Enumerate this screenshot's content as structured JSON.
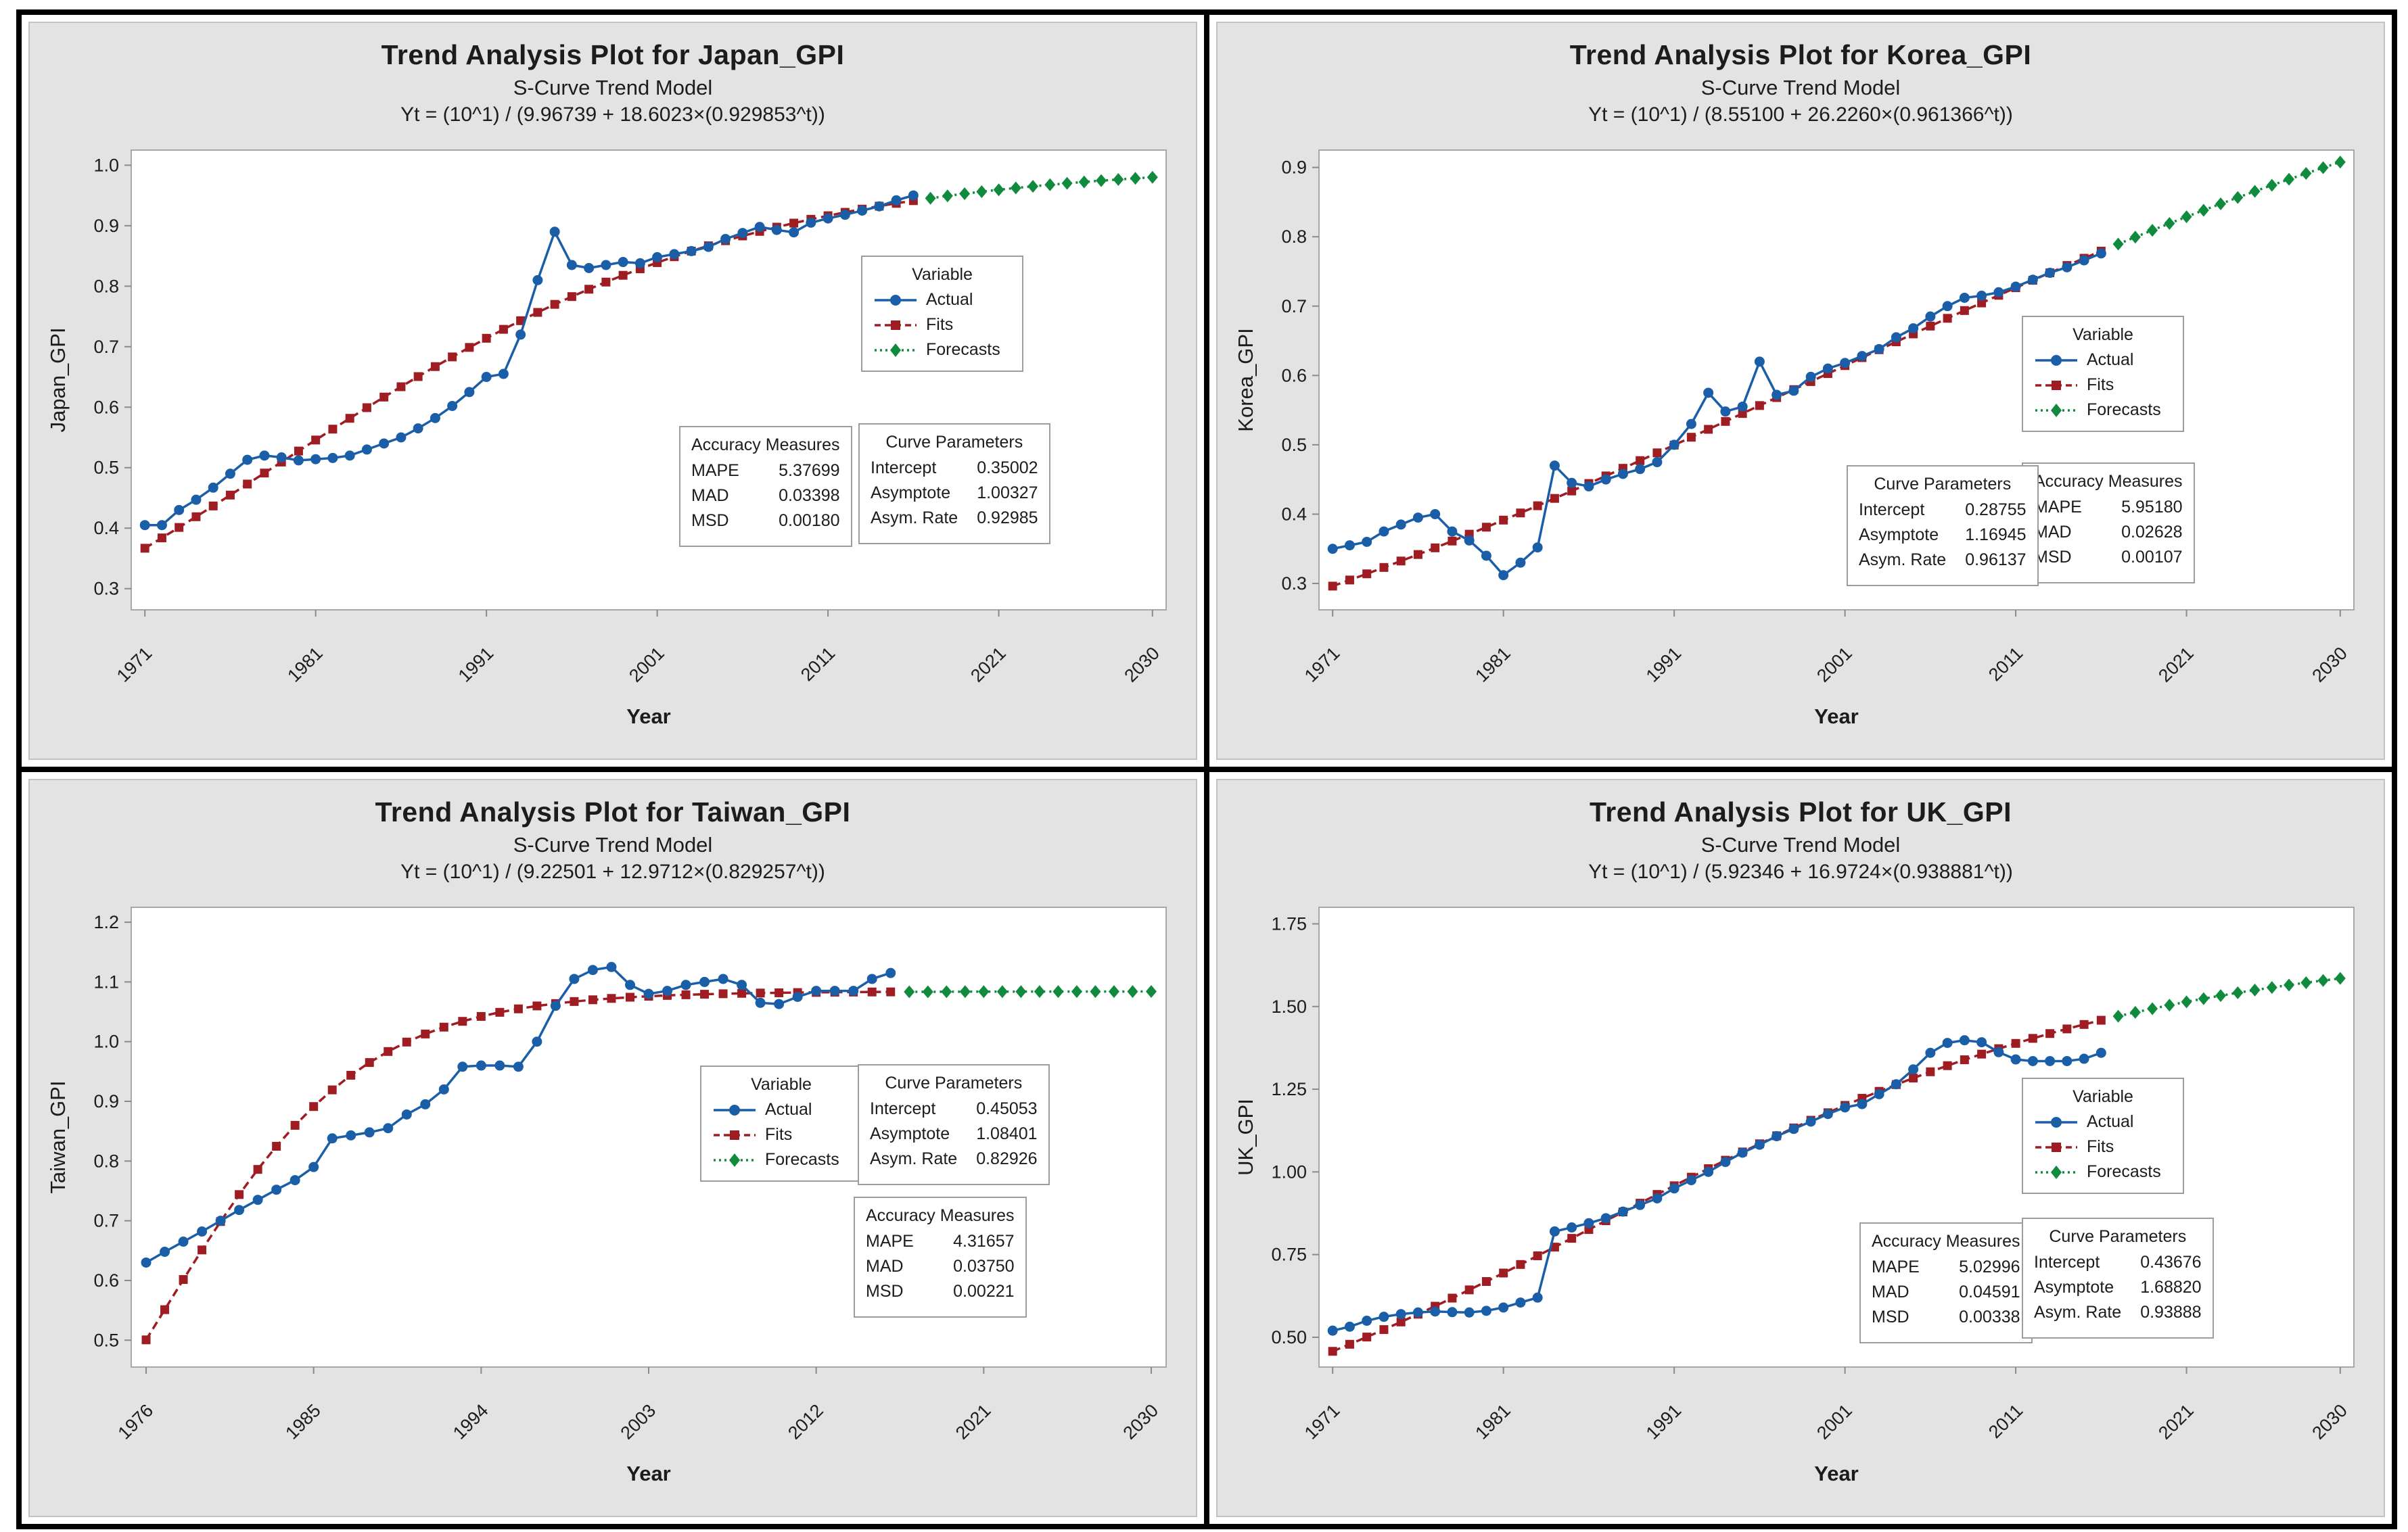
{
  "page": {
    "background": "#ffffff",
    "frame_color": "#000000",
    "panel_background": "#e3e3e3",
    "plot_background": "#ffffff",
    "axis_color": "#a8a8a8",
    "tick_color": "#8a8a8a",
    "text_color": "#1c1c1c",
    "series_colors": {
      "actual": "#1A5EA8",
      "fits": "#9F1D22",
      "forecasts": "#108A3C"
    }
  },
  "chart_data": [
    {
      "type": "line",
      "title": "Trend Analysis Plot for Japan_GPI",
      "subtitle": "S-Curve Trend Model",
      "equation": "Yt = (10^1) / (9.96739 + 18.6023×(0.929853^t))",
      "ylabel": "Japan_GPI",
      "xlabel": "Year",
      "start_year": 1971,
      "forecast_start_year": 2017,
      "ylim": [
        0.265,
        1.025
      ],
      "xlim": [
        1970.2,
        2030.8
      ],
      "ytick_values": [
        0.3,
        0.4,
        0.5,
        0.6,
        0.7,
        0.8,
        0.9,
        1.0
      ],
      "ytick_labels": [
        "0.3",
        "0.4",
        "0.5",
        "0.6",
        "0.7",
        "0.8",
        "0.9",
        "1.0"
      ],
      "xtick_values": [
        1971,
        1981,
        1991,
        2001,
        2011,
        2021,
        2030
      ],
      "xtick_labels": [
        "1971",
        "1981",
        "1991",
        "2001",
        "2011",
        "2021",
        "2030"
      ],
      "series": [
        {
          "name": "Actual",
          "key": "actual",
          "values": [
            0.405,
            0.405,
            0.43,
            0.447,
            0.467,
            0.49,
            0.513,
            0.52,
            0.517,
            0.512,
            0.514,
            0.516,
            0.52,
            0.53,
            0.54,
            0.55,
            0.565,
            0.582,
            0.602,
            0.625,
            0.65,
            0.655,
            0.72,
            0.81,
            0.89,
            0.835,
            0.83,
            0.835,
            0.84,
            0.838,
            0.848,
            0.853,
            0.858,
            0.865,
            0.878,
            0.888,
            0.898,
            0.893,
            0.889,
            0.905,
            0.912,
            0.918,
            0.925,
            0.932,
            0.942,
            0.95
          ]
        },
        {
          "name": "Fits",
          "key": "fits",
          "values": [
            0.3668,
            0.3839,
            0.4012,
            0.4189,
            0.4367,
            0.4547,
            0.4729,
            0.4911,
            0.5093,
            0.5275,
            0.5457,
            0.5637,
            0.5816,
            0.5992,
            0.6167,
            0.6338,
            0.6506,
            0.6671,
            0.6831,
            0.6988,
            0.7139,
            0.7287,
            0.743,
            0.7567,
            0.77,
            0.7828,
            0.795,
            0.8068,
            0.818,
            0.8287,
            0.839,
            0.8487,
            0.858,
            0.8668,
            0.8752,
            0.8831,
            0.8906,
            0.8976,
            0.9043,
            0.9106,
            0.9165,
            0.9221,
            0.9274,
            0.9323,
            0.937,
            0.9414
          ]
        },
        {
          "name": "Forecasts",
          "key": "forecasts",
          "values": [
            0.9454,
            0.9493,
            0.9529,
            0.9563,
            0.9594,
            0.9624,
            0.9651,
            0.9677,
            0.9701,
            0.9724,
            0.9745,
            0.9764,
            0.9783,
            0.98
          ]
        }
      ],
      "legend": {
        "title": "Variable",
        "items": [
          "Actual",
          "Fits",
          "Forecasts"
        ]
      },
      "accuracy": {
        "title": "Accuracy Measures",
        "rows": [
          [
            "MAPE",
            "5.37699"
          ],
          [
            "MAD",
            "0.03398"
          ],
          [
            "MSD",
            "0.00180"
          ]
        ]
      },
      "curve": {
        "title": "Curve Parameters",
        "rows": [
          [
            "Intercept",
            "0.35002"
          ],
          [
            "Asymptote",
            "1.00327"
          ],
          [
            "Asym. Rate",
            "0.92985"
          ]
        ]
      }
    },
    {
      "type": "line",
      "title": "Trend Analysis Plot for Korea_GPI",
      "subtitle": "S-Curve Trend Model",
      "equation": "Yt = (10^1) / (8.55100 + 26.2260×(0.961366^t))",
      "ylabel": "Korea_GPI",
      "xlabel": "Year",
      "start_year": 1971,
      "forecast_start_year": 2017,
      "ylim": [
        0.262,
        0.925
      ],
      "xlim": [
        1970.2,
        2030.8
      ],
      "ytick_values": [
        0.3,
        0.4,
        0.5,
        0.6,
        0.7,
        0.8,
        0.9
      ],
      "ytick_labels": [
        "0.3",
        "0.4",
        "0.5",
        "0.6",
        "0.7",
        "0.8",
        "0.9"
      ],
      "xtick_values": [
        1971,
        1981,
        1991,
        2001,
        2011,
        2021,
        2030
      ],
      "xtick_labels": [
        "1971",
        "1981",
        "1991",
        "2001",
        "2011",
        "2021",
        "2030"
      ],
      "series": [
        {
          "name": "Actual",
          "key": "actual",
          "values": [
            0.35,
            0.355,
            0.36,
            0.375,
            0.385,
            0.395,
            0.4,
            0.375,
            0.362,
            0.34,
            0.312,
            0.33,
            0.352,
            0.47,
            0.445,
            0.44,
            0.45,
            0.458,
            0.465,
            0.475,
            0.5,
            0.53,
            0.575,
            0.548,
            0.555,
            0.62,
            0.572,
            0.578,
            0.598,
            0.61,
            0.618,
            0.628,
            0.638,
            0.655,
            0.668,
            0.685,
            0.7,
            0.712,
            0.715,
            0.72,
            0.728,
            0.738,
            0.748,
            0.756,
            0.766,
            0.776
          ]
        },
        {
          "name": "Fits",
          "key": "fits",
          "values": [
            0.2962,
            0.305,
            0.3139,
            0.3231,
            0.3324,
            0.3418,
            0.3514,
            0.3612,
            0.3711,
            0.3812,
            0.3914,
            0.4017,
            0.4121,
            0.4227,
            0.4334,
            0.4442,
            0.4551,
            0.4661,
            0.4772,
            0.4884,
            0.4996,
            0.5109,
            0.5223,
            0.5337,
            0.5451,
            0.5566,
            0.5681,
            0.5796,
            0.5912,
            0.6027,
            0.6142,
            0.6257,
            0.6371,
            0.6485,
            0.6599,
            0.6712,
            0.6824,
            0.6936,
            0.7046,
            0.7156,
            0.7265,
            0.7373,
            0.748,
            0.7586,
            0.769,
            0.7793
          ]
        },
        {
          "name": "Forecasts",
          "key": "forecasts",
          "values": [
            0.7895,
            0.7995,
            0.8094,
            0.8192,
            0.8288,
            0.8382,
            0.8475,
            0.8566,
            0.8655,
            0.8743,
            0.8829,
            0.8914,
            0.8996,
            0.9077
          ]
        }
      ],
      "legend": {
        "title": "Variable",
        "items": [
          "Actual",
          "Fits",
          "Forecasts"
        ]
      },
      "accuracy": {
        "title": "Accuracy Measures",
        "rows": [
          [
            "MAPE",
            "5.95180"
          ],
          [
            "MAD",
            "0.02628"
          ],
          [
            "MSD",
            "0.00107"
          ]
        ]
      },
      "curve": {
        "title": "Curve Parameters",
        "rows": [
          [
            "Intercept",
            "0.28755"
          ],
          [
            "Asymptote",
            "1.16945"
          ],
          [
            "Asym. Rate",
            "0.96137"
          ]
        ]
      }
    },
    {
      "type": "line",
      "title": "Trend Analysis Plot for Taiwan_GPI",
      "subtitle": "S-Curve Trend Model",
      "equation": "Yt = (10^1) / (9.22501 + 12.9712×(0.829257^t))",
      "ylabel": "Taiwan_GPI",
      "xlabel": "Year",
      "start_year": 1976,
      "forecast_start_year": 2017,
      "ylim": [
        0.455,
        1.225
      ],
      "xlim": [
        1975.2,
        2030.8
      ],
      "ytick_values": [
        0.5,
        0.6,
        0.7,
        0.8,
        0.9,
        1.0,
        1.1,
        1.2
      ],
      "ytick_labels": [
        "0.5",
        "0.6",
        "0.7",
        "0.8",
        "0.9",
        "1.0",
        "1.1",
        "1.2"
      ],
      "xtick_values": [
        1976,
        1985,
        1994,
        2003,
        2012,
        2021,
        2030
      ],
      "xtick_labels": [
        "1976",
        "1985",
        "1994",
        "2003",
        "2012",
        "2021",
        "2030"
      ],
      "series": [
        {
          "name": "Actual",
          "key": "actual",
          "values": [
            0.63,
            0.648,
            0.665,
            0.682,
            0.7,
            0.718,
            0.735,
            0.752,
            0.768,
            0.79,
            0.838,
            0.843,
            0.848,
            0.855,
            0.878,
            0.895,
            0.92,
            0.958,
            0.96,
            0.96,
            0.958,
            1.0,
            1.06,
            1.105,
            1.12,
            1.125,
            1.095,
            1.08,
            1.085,
            1.095,
            1.1,
            1.105,
            1.095,
            1.065,
            1.063,
            1.075,
            1.085,
            1.085,
            1.085,
            1.105,
            1.115
          ]
        },
        {
          "name": "Fits",
          "key": "fits",
          "values": [
            0.5005,
            0.5511,
            0.6016,
            0.6511,
            0.6987,
            0.7439,
            0.786,
            0.8247,
            0.8598,
            0.8913,
            0.9192,
            0.9437,
            0.965,
            0.9835,
            0.9993,
            1.0128,
            1.0243,
            1.034,
            1.0422,
            1.0491,
            1.0549,
            1.0598,
            1.0638,
            1.0672,
            1.0701,
            1.0724,
            1.0744,
            1.076,
            1.0774,
            1.0785,
            1.0794,
            1.0802,
            1.0809,
            1.0814,
            1.0818,
            1.0822,
            1.0825,
            1.0828,
            1.083,
            1.0832,
            1.0833
          ]
        },
        {
          "name": "Forecasts",
          "key": "forecasts",
          "values": [
            1.0834,
            1.0835,
            1.0836,
            1.0837,
            1.0837,
            1.0838,
            1.0838,
            1.0839,
            1.0839,
            1.0839,
            1.0839,
            1.0839,
            1.0839,
            1.084
          ]
        }
      ],
      "legend": {
        "title": "Variable",
        "items": [
          "Actual",
          "Fits",
          "Forecasts"
        ]
      },
      "accuracy": {
        "title": "Accuracy Measures",
        "rows": [
          [
            "MAPE",
            "4.31657"
          ],
          [
            "MAD",
            "0.03750"
          ],
          [
            "MSD",
            "0.00221"
          ]
        ]
      },
      "curve": {
        "title": "Curve Parameters",
        "rows": [
          [
            "Intercept",
            "0.45053"
          ],
          [
            "Asymptote",
            "1.08401"
          ],
          [
            "Asym. Rate",
            "0.82926"
          ]
        ]
      }
    },
    {
      "type": "line",
      "title": "Trend Analysis Plot for UK_GPI",
      "subtitle": "S-Curve Trend Model",
      "equation": "Yt = (10^1) / (5.92346 + 16.9724×(0.938881^t))",
      "ylabel": "UK_GPI",
      "xlabel": "Year",
      "start_year": 1971,
      "forecast_start_year": 2017,
      "ylim": [
        0.41,
        1.8
      ],
      "xlim": [
        1970.2,
        2030.8
      ],
      "ytick_values": [
        0.5,
        0.75,
        1.0,
        1.25,
        1.5,
        1.75
      ],
      "ytick_labels": [
        "0.50",
        "0.75",
        "1.00",
        "1.25",
        "1.50",
        "1.75"
      ],
      "xtick_values": [
        1971,
        1981,
        1991,
        2001,
        2011,
        2021,
        2030
      ],
      "xtick_labels": [
        "1971",
        "1981",
        "1991",
        "2001",
        "2011",
        "2021",
        "2030"
      ],
      "series": [
        {
          "name": "Actual",
          "key": "actual",
          "values": [
            0.52,
            0.532,
            0.55,
            0.562,
            0.57,
            0.575,
            0.578,
            0.576,
            0.575,
            0.58,
            0.59,
            0.605,
            0.62,
            0.82,
            0.832,
            0.845,
            0.86,
            0.88,
            0.9,
            0.92,
            0.95,
            0.975,
            1.0,
            1.03,
            1.058,
            1.082,
            1.108,
            1.13,
            1.152,
            1.175,
            1.195,
            1.205,
            1.235,
            1.265,
            1.31,
            1.36,
            1.39,
            1.398,
            1.392,
            1.362,
            1.34,
            1.335,
            1.335,
            1.335,
            1.342,
            1.36
          ]
        },
        {
          "name": "Fits",
          "key": "fits",
          "values": [
            0.4575,
            0.4788,
            0.5007,
            0.5232,
            0.5463,
            0.5698,
            0.5939,
            0.6184,
            0.6433,
            0.6686,
            0.6942,
            0.7201,
            0.7463,
            0.7726,
            0.7991,
            0.8257,
            0.8523,
            0.8789,
            0.9054,
            0.9319,
            0.9581,
            0.9841,
            1.0098,
            1.0353,
            1.0603,
            1.085,
            1.1092,
            1.133,
            1.1562,
            1.1789,
            1.2011,
            1.2226,
            1.2436,
            1.2639,
            1.2837,
            1.3027,
            1.3212,
            1.339,
            1.3561,
            1.3726,
            1.3885,
            1.4037,
            1.4183,
            1.4323,
            1.4457,
            1.4585
          ]
        },
        {
          "name": "Forecasts",
          "key": "forecasts",
          "values": [
            1.4707,
            1.4824,
            1.4935,
            1.5041,
            1.5142,
            1.5238,
            1.5329,
            1.5416,
            1.5498,
            1.5576,
            1.565,
            1.572,
            1.5787,
            1.585
          ]
        }
      ],
      "legend": {
        "title": "Variable",
        "items": [
          "Actual",
          "Fits",
          "Forecasts"
        ]
      },
      "accuracy": {
        "title": "Accuracy Measures",
        "rows": [
          [
            "MAPE",
            "5.02996"
          ],
          [
            "MAD",
            "0.04591"
          ],
          [
            "MSD",
            "0.00338"
          ]
        ]
      },
      "curve": {
        "title": "Curve Parameters",
        "rows": [
          [
            "Intercept",
            "0.43676"
          ],
          [
            "Asymptote",
            "1.68820"
          ],
          [
            "Asym. Rate",
            "0.93888"
          ]
        ]
      }
    }
  ]
}
